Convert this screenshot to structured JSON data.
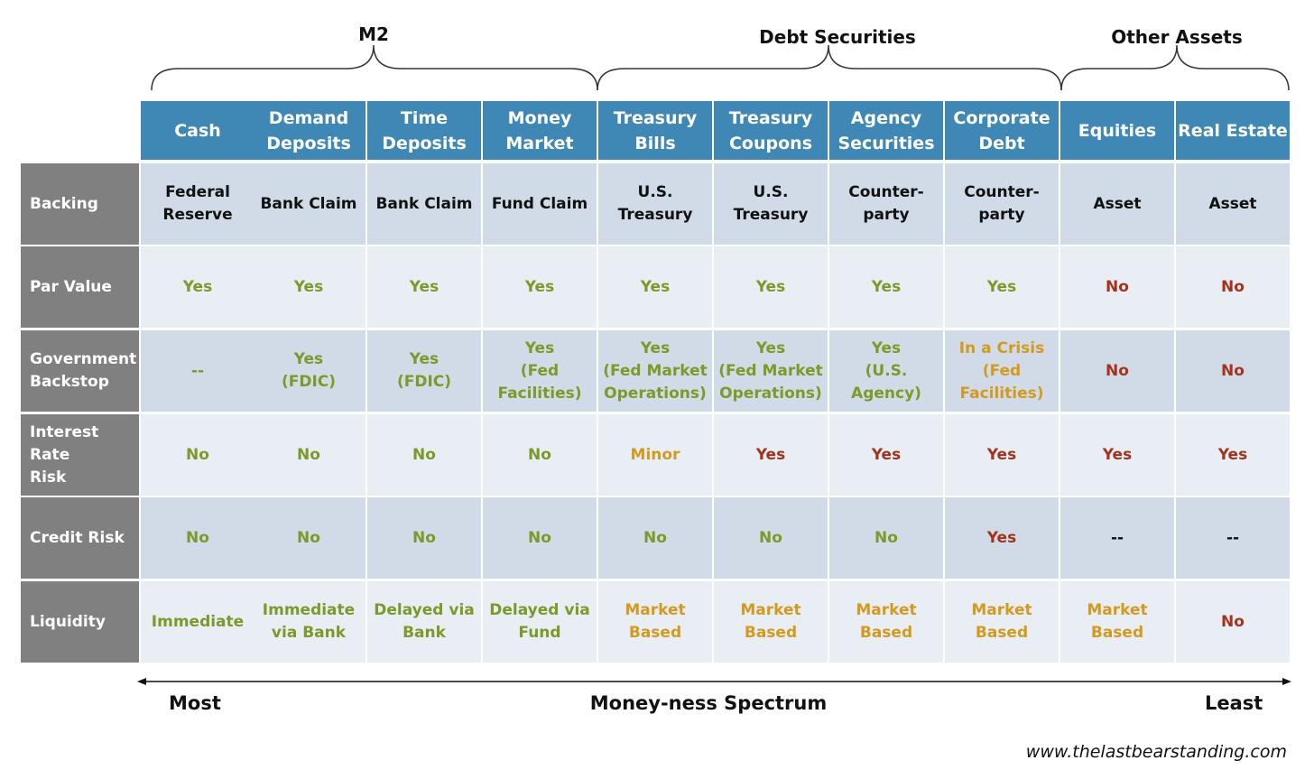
{
  "groups": [
    {
      "label": "M2"
    },
    {
      "label": "Debt Securities"
    },
    {
      "label": "Other Assets"
    }
  ],
  "columns": [
    "Cash",
    "Demand\nDeposits",
    "Time\nDeposits",
    "Money\nMarket",
    "Treasury\nBills",
    "Treasury\nCoupons",
    "Agency\nSecurities",
    "Corporate\nDebt",
    "Equities",
    "Real Estate"
  ],
  "rows": [
    {
      "label": "Backing",
      "cells": [
        {
          "text": "Federal\nReserve",
          "tone": "black"
        },
        {
          "text": "Bank Claim",
          "tone": "black"
        },
        {
          "text": "Bank Claim",
          "tone": "black"
        },
        {
          "text": "Fund Claim",
          "tone": "black"
        },
        {
          "text": "U.S.\nTreasury",
          "tone": "black"
        },
        {
          "text": "U.S.\nTreasury",
          "tone": "black"
        },
        {
          "text": "Counter-\nparty",
          "tone": "black"
        },
        {
          "text": "Counter-\nparty",
          "tone": "black"
        },
        {
          "text": "Asset",
          "tone": "black"
        },
        {
          "text": "Asset",
          "tone": "black"
        }
      ]
    },
    {
      "label": "Par Value",
      "cells": [
        {
          "text": "Yes",
          "tone": "green"
        },
        {
          "text": "Yes",
          "tone": "green"
        },
        {
          "text": "Yes",
          "tone": "green"
        },
        {
          "text": "Yes",
          "tone": "green"
        },
        {
          "text": "Yes",
          "tone": "green"
        },
        {
          "text": "Yes",
          "tone": "green"
        },
        {
          "text": "Yes",
          "tone": "green"
        },
        {
          "text": "Yes",
          "tone": "green"
        },
        {
          "text": "No",
          "tone": "red"
        },
        {
          "text": "No",
          "tone": "red"
        }
      ]
    },
    {
      "label": "Government\nBackstop",
      "cells": [
        {
          "text": "--",
          "tone": "green"
        },
        {
          "text": "Yes\n(FDIC)",
          "tone": "green"
        },
        {
          "text": "Yes\n(FDIC)",
          "tone": "green"
        },
        {
          "text": "Yes\n(Fed\nFacilities)",
          "tone": "green"
        },
        {
          "text": "Yes\n(Fed Market\nOperations)",
          "tone": "green"
        },
        {
          "text": "Yes\n(Fed Market\nOperations)",
          "tone": "green"
        },
        {
          "text": "Yes\n(U.S.\nAgency)",
          "tone": "green"
        },
        {
          "text": "In a Crisis\n(Fed\nFacilities)",
          "tone": "amber"
        },
        {
          "text": "No",
          "tone": "red"
        },
        {
          "text": "No",
          "tone": "red"
        }
      ]
    },
    {
      "label": "Interest Rate\nRisk",
      "cells": [
        {
          "text": "No",
          "tone": "green"
        },
        {
          "text": "No",
          "tone": "green"
        },
        {
          "text": "No",
          "tone": "green"
        },
        {
          "text": "No",
          "tone": "green"
        },
        {
          "text": "Minor",
          "tone": "amber"
        },
        {
          "text": "Yes",
          "tone": "red"
        },
        {
          "text": "Yes",
          "tone": "red"
        },
        {
          "text": "Yes",
          "tone": "red"
        },
        {
          "text": "Yes",
          "tone": "red"
        },
        {
          "text": "Yes",
          "tone": "red"
        }
      ]
    },
    {
      "label": "Credit Risk",
      "cells": [
        {
          "text": "No",
          "tone": "green"
        },
        {
          "text": "No",
          "tone": "green"
        },
        {
          "text": "No",
          "tone": "green"
        },
        {
          "text": "No",
          "tone": "green"
        },
        {
          "text": "No",
          "tone": "green"
        },
        {
          "text": "No",
          "tone": "green"
        },
        {
          "text": "No",
          "tone": "green"
        },
        {
          "text": "Yes",
          "tone": "red"
        },
        {
          "text": "--",
          "tone": "black"
        },
        {
          "text": "--",
          "tone": "black"
        }
      ]
    },
    {
      "label": "Liquidity",
      "cells": [
        {
          "text": "Immediate",
          "tone": "green"
        },
        {
          "text": "Immediate\nvia Bank",
          "tone": "green"
        },
        {
          "text": "Delayed via\nBank",
          "tone": "green"
        },
        {
          "text": "Delayed via\nFund",
          "tone": "green"
        },
        {
          "text": "Market\nBased",
          "tone": "amber"
        },
        {
          "text": "Market\nBased",
          "tone": "amber"
        },
        {
          "text": "Market\nBased",
          "tone": "amber"
        },
        {
          "text": "Market\nBased",
          "tone": "amber"
        },
        {
          "text": "Market\nBased",
          "tone": "amber"
        },
        {
          "text": "No",
          "tone": "red"
        }
      ]
    }
  ],
  "spectrum": {
    "left": "Most",
    "center": "Money-ness Spectrum",
    "right": "Least"
  },
  "credit": "www.thelastbearstanding.com",
  "colors": {
    "header_bg": "#3f87b5",
    "rowhdr_bg": "#808080",
    "row_dark": "#d0dbe7",
    "row_light": "#e9eef4",
    "green": "#7b9a2a",
    "red": "#a4321c",
    "amber": "#d39a20"
  }
}
